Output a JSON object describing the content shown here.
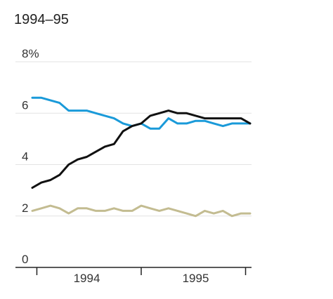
{
  "chart_data": {
    "type": "line",
    "title": "1994–95",
    "xlabel": "",
    "ylabel": "",
    "ylim": [
      0,
      8
    ],
    "yticks": [
      0,
      2,
      4,
      6,
      8
    ],
    "ytick_labels": [
      "0",
      "2",
      "4",
      "6",
      "8%"
    ],
    "xlim": [
      0,
      24
    ],
    "xticks": [
      0.5,
      12,
      23.5
    ],
    "x_category_labels": [
      {
        "label": "1994",
        "x": 6
      },
      {
        "label": "1995",
        "x": 18
      }
    ],
    "grid": true,
    "legend": "none",
    "series": [
      {
        "color": "#1a9ad9",
        "x": [
          0,
          1,
          2,
          3,
          4,
          5,
          6,
          7,
          8,
          9,
          10,
          11,
          12,
          13,
          14,
          15,
          16,
          17,
          18,
          19,
          20,
          21,
          22,
          23,
          24
        ],
        "values": [
          6.6,
          6.6,
          6.5,
          6.4,
          6.1,
          6.1,
          6.1,
          6.0,
          5.9,
          5.8,
          5.6,
          5.5,
          5.6,
          5.4,
          5.4,
          5.8,
          5.6,
          5.6,
          5.7,
          5.7,
          5.6,
          5.5,
          5.6,
          5.6,
          5.6
        ]
      },
      {
        "color": "#111111",
        "x": [
          0,
          1,
          2,
          3,
          4,
          5,
          6,
          7,
          8,
          9,
          10,
          11,
          12,
          13,
          14,
          15,
          16,
          17,
          18,
          19,
          20,
          21,
          22,
          23,
          24
        ],
        "values": [
          3.1,
          3.3,
          3.4,
          3.6,
          4.0,
          4.2,
          4.3,
          4.5,
          4.7,
          4.8,
          5.3,
          5.5,
          5.6,
          5.9,
          6.0,
          6.1,
          6.0,
          6.0,
          5.9,
          5.8,
          5.8,
          5.8,
          5.8,
          5.8,
          5.6
        ]
      },
      {
        "color": "#c3bc91",
        "x": [
          0,
          1,
          2,
          3,
          4,
          5,
          6,
          7,
          8,
          9,
          10,
          11,
          12,
          13,
          14,
          15,
          16,
          17,
          18,
          19,
          20,
          21,
          22,
          23,
          24
        ],
        "values": [
          2.2,
          2.3,
          2.4,
          2.3,
          2.1,
          2.3,
          2.3,
          2.2,
          2.2,
          2.3,
          2.2,
          2.2,
          2.4,
          2.3,
          2.2,
          2.3,
          2.2,
          2.1,
          2.0,
          2.2,
          2.1,
          2.2,
          2.0,
          2.1,
          2.1
        ]
      }
    ]
  }
}
